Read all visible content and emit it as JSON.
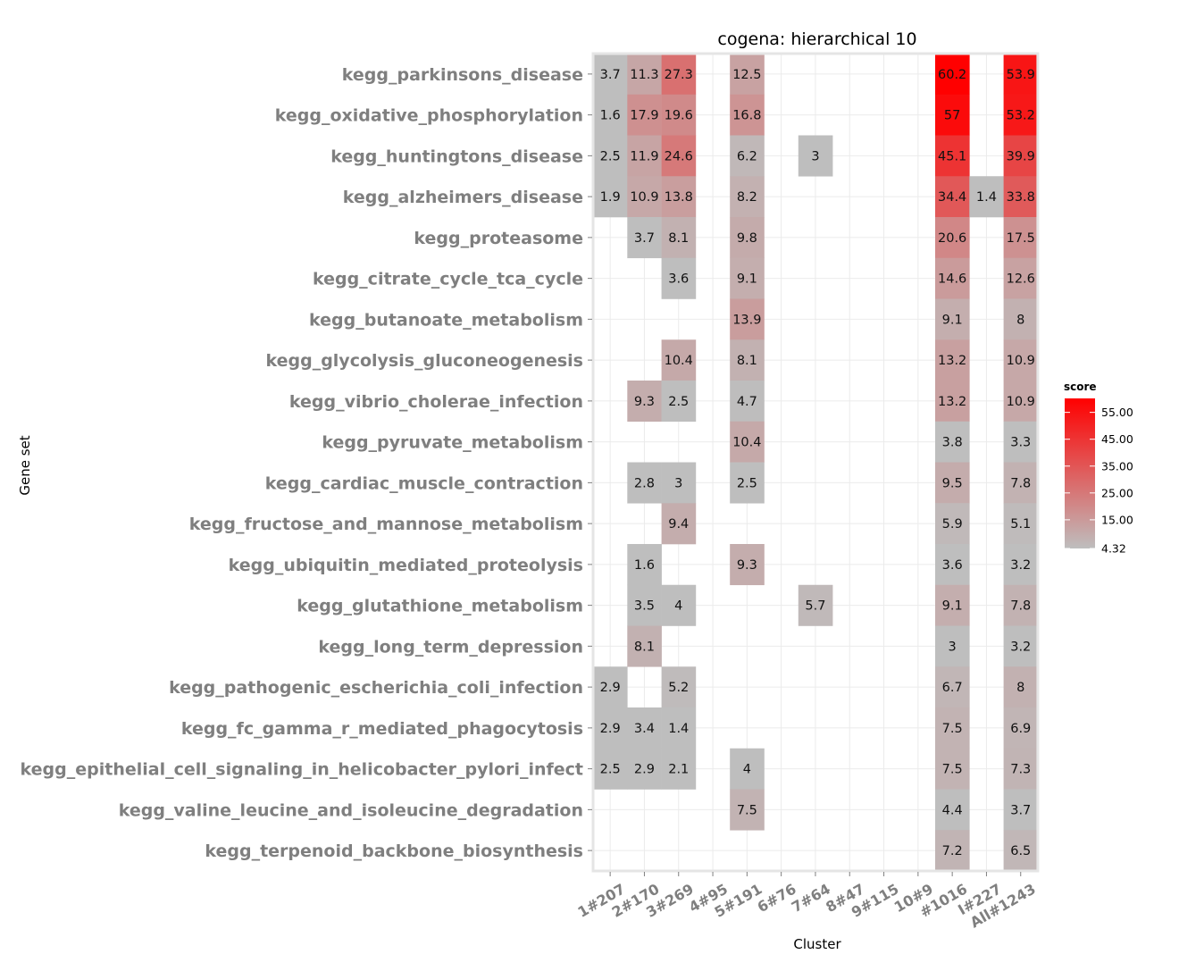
{
  "chart_data": {
    "type": "heatmap",
    "title": "cogena: hierarchical 10",
    "xlabel": "Cluster",
    "ylabel": "Gene set",
    "x_categories": [
      "1#207",
      "2#170",
      "3#269",
      "4#95",
      "5#191",
      "6#76",
      "7#64",
      "8#47",
      "9#115",
      "10#9",
      "#1016",
      "I#227",
      "All#1243"
    ],
    "y_categories": [
      "kegg_parkinsons_disease",
      "kegg_oxidative_phosphorylation",
      "kegg_huntingtons_disease",
      "kegg_alzheimers_disease",
      "kegg_proteasome",
      "kegg_citrate_cycle_tca_cycle",
      "kegg_butanoate_metabolism",
      "kegg_glycolysis_gluconeogenesis",
      "kegg_vibrio_cholerae_infection",
      "kegg_pyruvate_metabolism",
      "kegg_cardiac_muscle_contraction",
      "kegg_fructose_and_mannose_metabolism",
      "kegg_ubiquitin_mediated_proteolysis",
      "kegg_glutathione_metabolism",
      "kegg_long_term_depression",
      "kegg_pathogenic_escherichia_coli_infection",
      "kegg_fc_gamma_r_mediated_phagocytosis",
      "kegg_epithelial_cell_signaling_in_helicobacter_pylori_infect",
      "kegg_valine_leucine_and_isoleucine_degradation",
      "kegg_terpenoid_backbone_biosynthesis"
    ],
    "values": [
      [
        3.7,
        11.3,
        27.3,
        null,
        12.5,
        null,
        null,
        null,
        null,
        null,
        60.2,
        null,
        53.9
      ],
      [
        1.6,
        17.9,
        19.6,
        null,
        16.8,
        null,
        null,
        null,
        null,
        null,
        57,
        null,
        53.2
      ],
      [
        2.5,
        11.9,
        24.6,
        null,
        6.2,
        null,
        3,
        null,
        null,
        null,
        45.1,
        null,
        39.9
      ],
      [
        1.9,
        10.9,
        13.8,
        null,
        8.2,
        null,
        null,
        null,
        null,
        null,
        34.4,
        1.4,
        33.8
      ],
      [
        null,
        3.7,
        8.1,
        null,
        9.8,
        null,
        null,
        null,
        null,
        null,
        20.6,
        null,
        17.5
      ],
      [
        null,
        null,
        3.6,
        null,
        9.1,
        null,
        null,
        null,
        null,
        null,
        14.6,
        null,
        12.6
      ],
      [
        null,
        null,
        null,
        null,
        13.9,
        null,
        null,
        null,
        null,
        null,
        9.1,
        null,
        8
      ],
      [
        null,
        null,
        10.4,
        null,
        8.1,
        null,
        null,
        null,
        null,
        null,
        13.2,
        null,
        10.9
      ],
      [
        null,
        9.3,
        2.5,
        null,
        4.7,
        null,
        null,
        null,
        null,
        null,
        13.2,
        null,
        10.9
      ],
      [
        null,
        null,
        null,
        null,
        10.4,
        null,
        null,
        null,
        null,
        null,
        3.8,
        null,
        3.3
      ],
      [
        null,
        2.8,
        3,
        null,
        2.5,
        null,
        null,
        null,
        null,
        null,
        9.5,
        null,
        7.8
      ],
      [
        null,
        null,
        9.4,
        null,
        null,
        null,
        null,
        null,
        null,
        null,
        5.9,
        null,
        5.1
      ],
      [
        null,
        1.6,
        null,
        null,
        9.3,
        null,
        null,
        null,
        null,
        null,
        3.6,
        null,
        3.2
      ],
      [
        null,
        3.5,
        4,
        null,
        null,
        null,
        5.7,
        null,
        null,
        null,
        9.1,
        null,
        7.8
      ],
      [
        null,
        8.1,
        null,
        null,
        null,
        null,
        null,
        null,
        null,
        null,
        3,
        null,
        3.2
      ],
      [
        2.9,
        null,
        5.2,
        null,
        null,
        null,
        null,
        null,
        null,
        null,
        6.7,
        null,
        8
      ],
      [
        2.9,
        3.4,
        1.4,
        null,
        null,
        null,
        null,
        null,
        null,
        null,
        7.5,
        null,
        6.9
      ],
      [
        2.5,
        2.9,
        2.1,
        null,
        4,
        null,
        null,
        null,
        null,
        null,
        7.5,
        null,
        7.3
      ],
      [
        null,
        null,
        null,
        null,
        7.5,
        null,
        null,
        null,
        null,
        null,
        4.4,
        null,
        3.7
      ],
      [
        null,
        null,
        null,
        null,
        null,
        null,
        null,
        null,
        null,
        null,
        7.2,
        null,
        6.5
      ]
    ],
    "legend": {
      "title": "score",
      "ticks": [
        "55.00",
        "45.00",
        "35.00",
        "25.00",
        "15.00",
        "4.32"
      ],
      "min": 4.32,
      "max": 60.2,
      "placement": "right"
    },
    "colors": {
      "low": "#bebebe",
      "high": "#ff0000",
      "panel_border": "#e5e5e5",
      "grid": "#ebebeb",
      "label": "#7f7f7f"
    }
  }
}
